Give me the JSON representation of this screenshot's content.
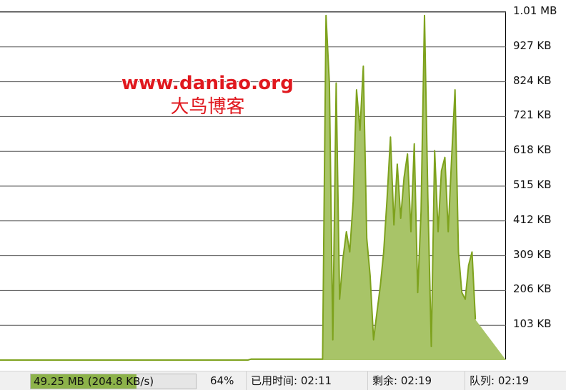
{
  "colors": {
    "fill": "#a8c468",
    "line": "#7ea21d",
    "grid": "#555555",
    "progress_fill": "#8db34a"
  },
  "watermark": {
    "url": "www.daniao.org",
    "name": "大鸟博客"
  },
  "status_bar": {
    "transferred": "49.25 MB (204.8 KB/s)",
    "progress_fraction": 0.64,
    "percent": "64%",
    "elapsed": "已用时间: 02:11",
    "remaining": "剩余: 02:19",
    "queue": "队列: 02:19"
  },
  "chart_data": {
    "type": "area",
    "title": "",
    "xlabel": "",
    "ylabel": "",
    "y_tick_labels": [
      "1.01 MB",
      "927 KB",
      "824 KB",
      "721 KB",
      "618 KB",
      "515 KB",
      "412 KB",
      "309 KB",
      "206 KB",
      "103 KB"
    ],
    "y_tick_values": [
      1030,
      927,
      824,
      721,
      618,
      515,
      412,
      309,
      206,
      103
    ],
    "ylim": [
      0,
      1030
    ],
    "y_unit": "KB/s",
    "grid": true,
    "x_samples": 150,
    "series": [
      {
        "values": [
          0,
          0,
          0,
          0,
          0,
          0,
          0,
          0,
          0,
          0,
          0,
          0,
          0,
          0,
          0,
          0,
          0,
          0,
          0,
          0,
          0,
          0,
          0,
          0,
          0,
          0,
          0,
          0,
          0,
          0,
          0,
          0,
          0,
          0,
          0,
          0,
          0,
          0,
          0,
          0,
          0,
          0,
          0,
          0,
          0,
          0,
          0,
          0,
          0,
          0,
          0,
          0,
          0,
          0,
          0,
          0,
          0,
          0,
          0,
          0,
          0,
          0,
          0,
          0,
          0,
          0,
          0,
          0,
          0,
          0,
          0,
          0,
          0,
          0,
          3,
          3,
          3,
          3,
          3,
          3,
          3,
          3,
          3,
          3,
          3,
          3,
          3,
          3,
          3,
          3,
          3,
          3,
          3,
          3,
          3,
          3,
          1020,
          820,
          60,
          820,
          180,
          300,
          380,
          320,
          470,
          800,
          680,
          870,
          360,
          250,
          60,
          140,
          220,
          320,
          480,
          660,
          400,
          580,
          420,
          540,
          610,
          380,
          640,
          200,
          440,
          1020,
          480,
          40,
          620,
          380,
          560,
          600,
          380,
          600,
          800,
          320,
          200,
          180,
          280,
          320,
          120
        ]
      }
    ]
  }
}
